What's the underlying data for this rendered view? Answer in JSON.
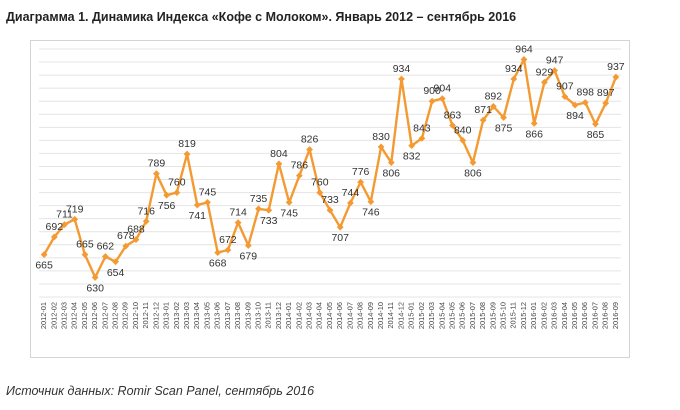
{
  "title": "Диаграмма 1. Динамика Индекса «Кофе с Молоком». Январь 2012 – сентябрь 2016",
  "source": "Источник данных: Romir Scan Panel, сентябрь 2016",
  "colors": {
    "line": "#F39A32",
    "grid": "#e4e4e4",
    "frame": "#d4d4d4"
  },
  "chart_data": {
    "type": "line",
    "title": "Диаграмма 1. Динамика Индекса «Кофе с Молоком». Январь 2012 – сентябрь 2016",
    "xlabel": "",
    "ylabel": "",
    "ylim": [
      600,
      980
    ],
    "grid": true,
    "categories": [
      "2012-01",
      "2012-02",
      "2012-03",
      "2012-04",
      "2012-05",
      "2012-06",
      "2012-07",
      "2012-08",
      "2012-09",
      "2012-10",
      "2012-11",
      "2012-12",
      "2013-01",
      "2013-02",
      "2013-03",
      "2013-04",
      "2013-05",
      "2013-06",
      "2013-07",
      "2013-08",
      "2013-09",
      "2013-10",
      "2013-11",
      "2013-12",
      "2014-01",
      "2014-02",
      "2014-03",
      "2014-04",
      "2014-05",
      "2014-06",
      "2014-07",
      "2014-08",
      "2014-09",
      "2014-10",
      "2014-11",
      "2014-12",
      "2015-01",
      "2015-02",
      "2015-03",
      "2015-04",
      "2015-05",
      "2015-06",
      "2015-07",
      "2015-08",
      "2015-09",
      "2015-10",
      "2015-11",
      "2015-12",
      "2016-01",
      "2016-02",
      "2016-03",
      "2016-04",
      "2016-05",
      "2016-06",
      "2016-07",
      "2016-08",
      "2016-09"
    ],
    "series": [
      {
        "name": "Индекс «Кофе с Молоком»",
        "values": [
          665,
          692,
          711,
          719,
          665,
          630,
          662,
          654,
          678,
          688,
          716,
          789,
          756,
          760,
          819,
          741,
          745,
          668,
          672,
          714,
          679,
          735,
          733,
          804,
          745,
          786,
          826,
          760,
          733,
          707,
          744,
          776,
          746,
          830,
          806,
          934,
          832,
          843,
          900,
          904,
          863,
          840,
          806,
          871,
          892,
          875,
          934,
          964,
          866,
          929,
          947,
          907,
          894,
          898,
          865,
          897,
          937
        ]
      }
    ]
  }
}
